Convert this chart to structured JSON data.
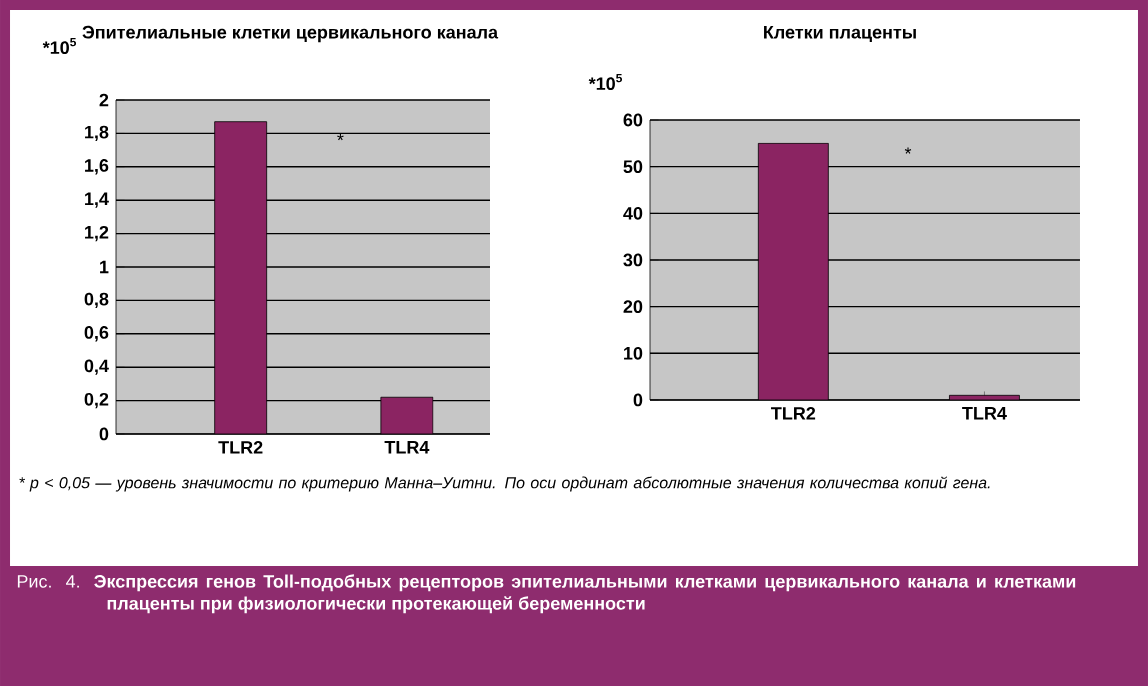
{
  "chart_data": [
    {
      "type": "bar",
      "title": "Эпителиальные клетки цервикального канала",
      "ylabel": "*10$^{5}$",
      "categories": [
        "TLR2",
        "TLR4"
      ],
      "values": [
        1.87,
        0.22
      ],
      "color": "#8b2462",
      "ylim": [
        0,
        2
      ],
      "yticks": [
        0,
        {
          "value": 0.2,
          "label": "0,2"
        },
        {
          "value": 0.4,
          "label": "0,4"
        },
        {
          "value": 0.6,
          "label": "0,6"
        },
        {
          "value": 0.8,
          "label": "0,8"
        },
        1,
        {
          "value": 1.2,
          "label": "1,2"
        },
        {
          "value": 1.4,
          "label": "1,4"
        },
        {
          "value": 1.6,
          "label": "1,6"
        },
        {
          "value": 1.8,
          "label": "1,8"
        },
        2
      ],
      "grid": "y",
      "annotations": [
        "*",
        "* p < 0,05 — уровень значимости по критерию Манна–Уитни. По оси ординат абсолютные значения количества копий гена.",
        "Рис. 4. **Экспрессия генов Toll-подобных рецепторов эпителиальными клетками цервикального канала и клетками плаценты при физиологически протекающей беременности**"
      ]
    },
    {
      "type": "bar",
      "title": "Клетки плаценты",
      "ylabel": "*10$^{5}$",
      "categories": [
        "TLR2",
        "TLR4"
      ],
      "values": [
        55,
        1
      ],
      "color": "#8b2462",
      "ylim": [
        0,
        60
      ],
      "yticks": [
        0,
        10,
        20,
        30,
        40,
        50,
        60
      ],
      "grid": "y",
      "annotations": [
        "*"
      ]
    }
  ]
}
